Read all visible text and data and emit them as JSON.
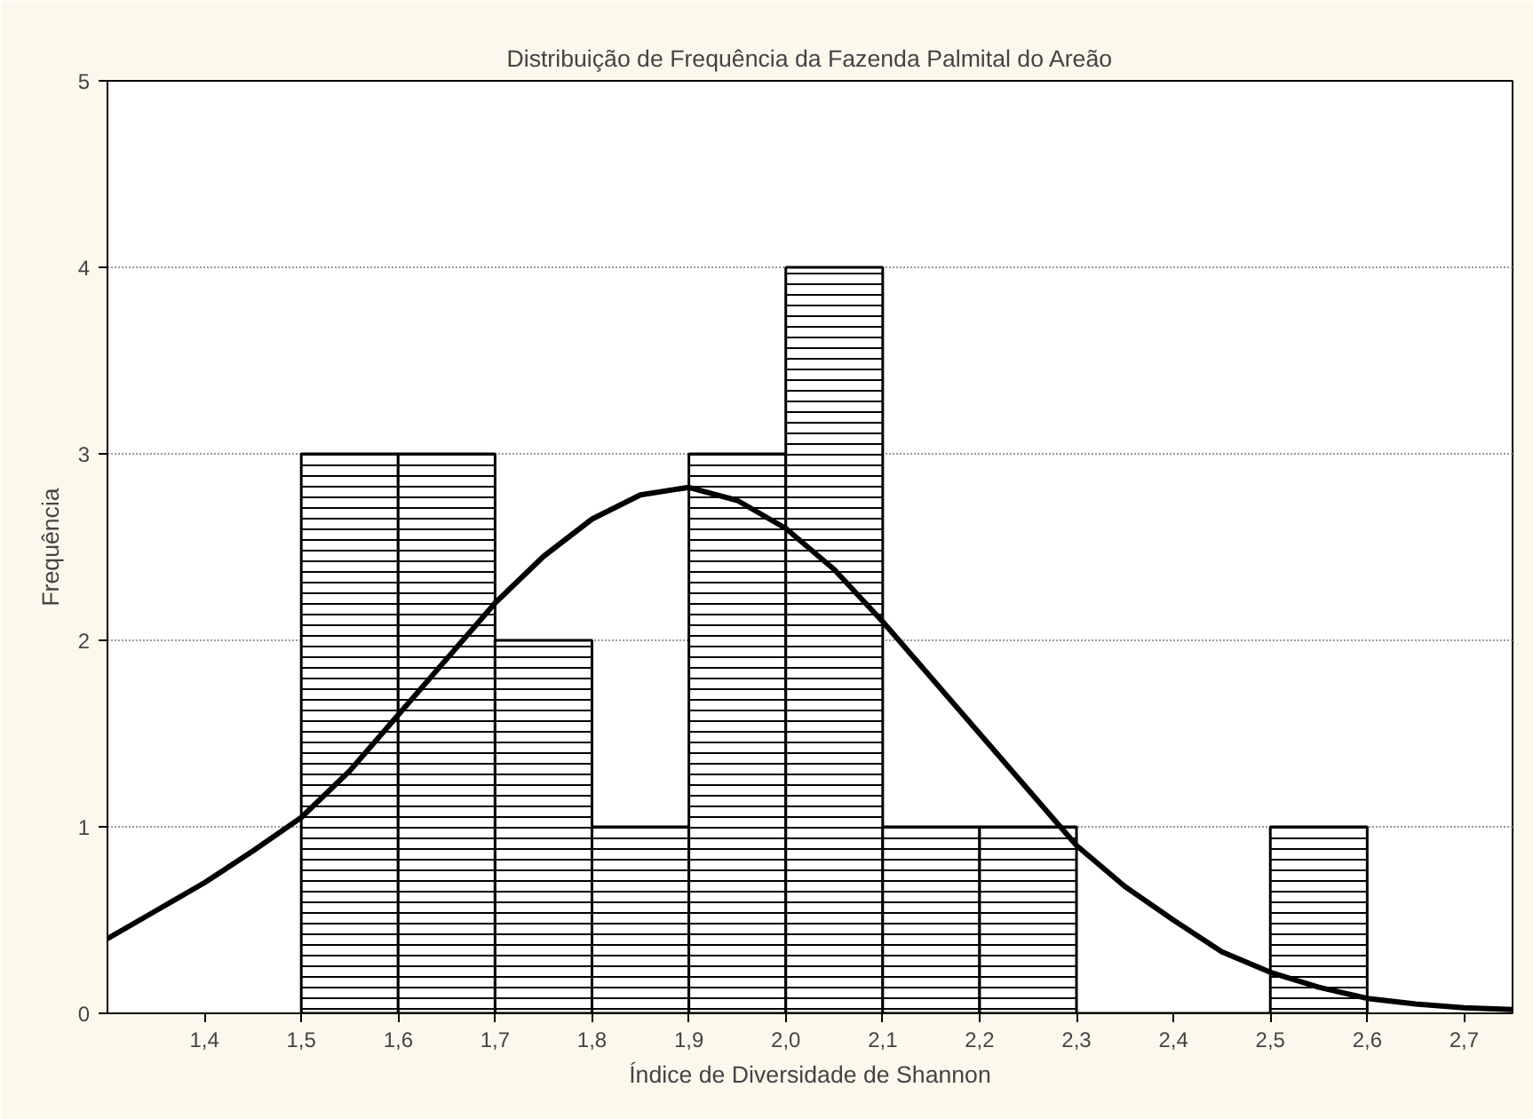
{
  "chart_data": {
    "type": "histogram",
    "title": "Distribuição de Frequência da Fazenda Palmital do Areão",
    "xlabel": "Índice de Diversidade de Shannon",
    "ylabel": "Frequência",
    "bins": [
      1.5,
      1.6,
      1.7,
      1.8,
      1.9,
      2.0,
      2.1,
      2.2,
      2.3,
      2.4,
      2.5,
      2.6
    ],
    "values": [
      3,
      3,
      2,
      1,
      3,
      4,
      1,
      1,
      0,
      0,
      1
    ],
    "color": "#000000",
    "series": [
      {
        "type": "line",
        "color": "#000000",
        "x": [
          1.3,
          1.35,
          1.4,
          1.45,
          1.5,
          1.55,
          1.6,
          1.65,
          1.7,
          1.75,
          1.8,
          1.85,
          1.9,
          1.95,
          2.0,
          2.05,
          2.1,
          2.15,
          2.2,
          2.25,
          2.3,
          2.35,
          2.4,
          2.45,
          2.5,
          2.55,
          2.6,
          2.65,
          2.7,
          2.75
        ],
        "values": [
          0.4,
          0.55,
          0.7,
          0.87,
          1.05,
          1.3,
          1.6,
          1.9,
          2.2,
          2.45,
          2.65,
          2.78,
          2.82,
          2.75,
          2.6,
          2.38,
          2.1,
          1.8,
          1.5,
          1.2,
          0.9,
          0.68,
          0.5,
          0.33,
          0.22,
          0.14,
          0.08,
          0.05,
          0.03,
          0.02
        ]
      }
    ],
    "xlim": [
      1.3,
      2.75
    ],
    "ylim": [
      0,
      5
    ],
    "xticks": [
      {
        "value": 1.4,
        "label": "1,4"
      },
      {
        "value": 1.5,
        "label": "1,5"
      },
      {
        "value": 1.6,
        "label": "1,6"
      },
      {
        "value": 1.7,
        "label": "1,7"
      },
      {
        "value": 1.8,
        "label": "1,8"
      },
      {
        "value": 1.9,
        "label": "1,9"
      },
      {
        "value": 2.0,
        "label": "2,0"
      },
      {
        "value": 2.1,
        "label": "2,1"
      },
      {
        "value": 2.2,
        "label": "2,2"
      },
      {
        "value": 2.3,
        "label": "2,3"
      },
      {
        "value": 2.4,
        "label": "2,4"
      },
      {
        "value": 2.5,
        "label": "2,5"
      },
      {
        "value": 2.6,
        "label": "2,6"
      },
      {
        "value": 2.7,
        "label": "2,7"
      }
    ],
    "yticks": [
      0,
      1,
      2,
      3,
      4,
      5
    ],
    "grid": "y"
  }
}
